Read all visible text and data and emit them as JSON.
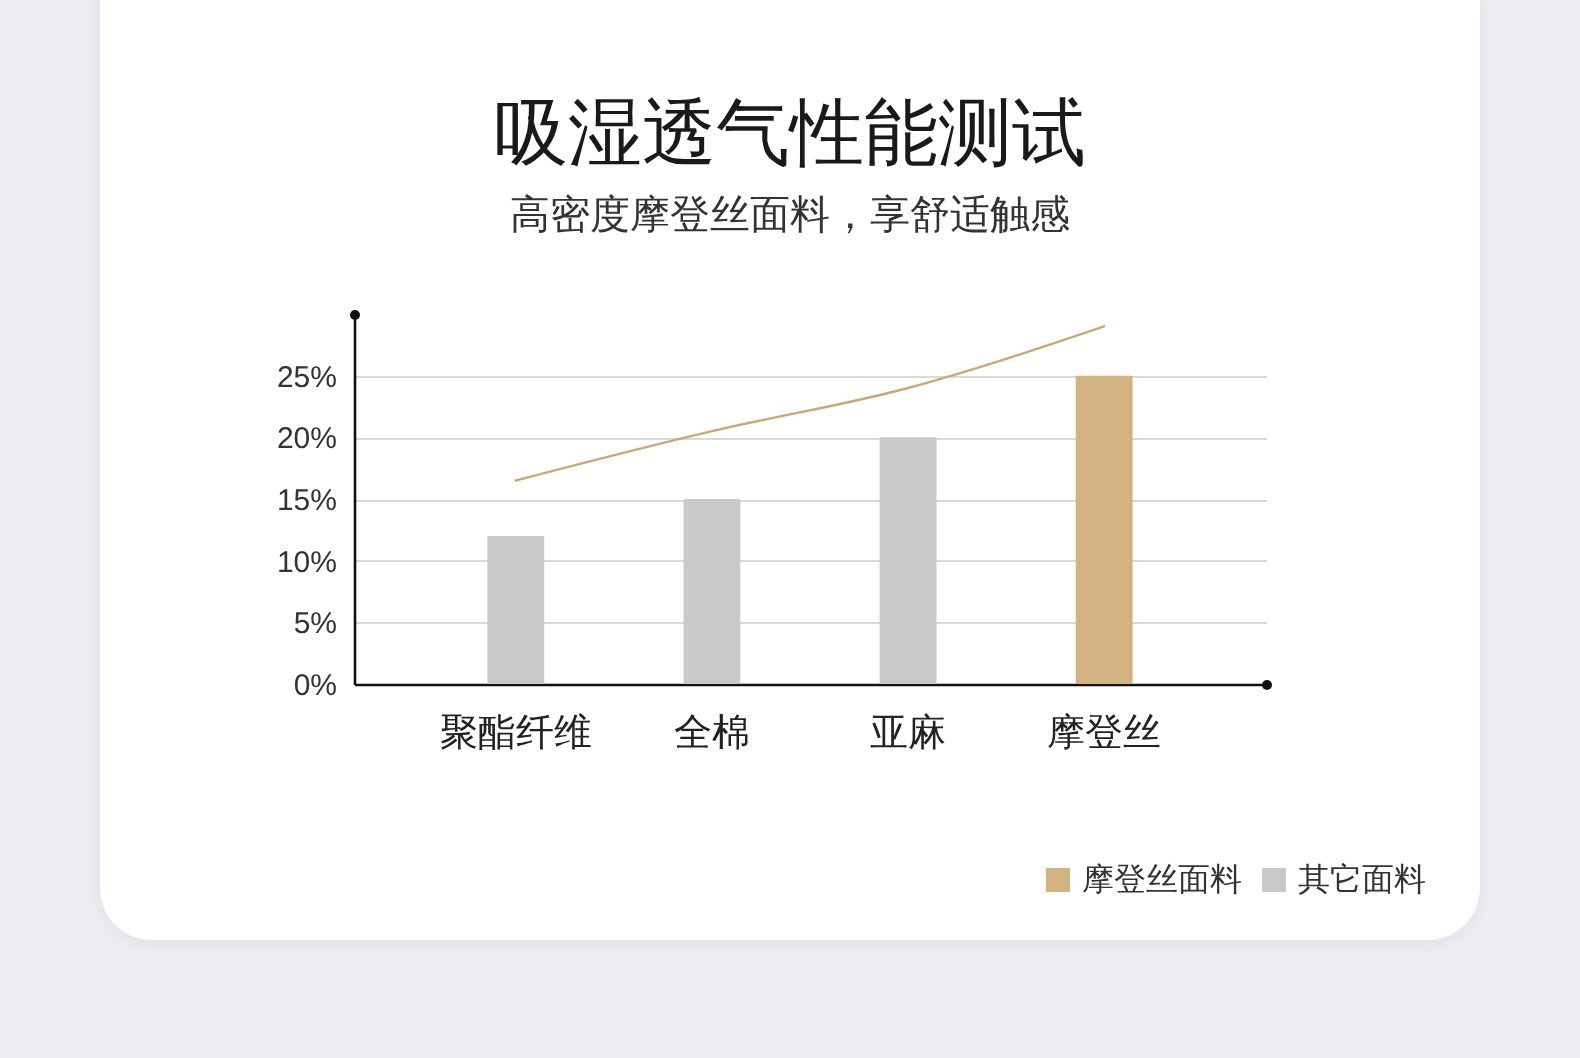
{
  "chart_data": {
    "type": "bar",
    "title": "吸湿透气性能测试",
    "subtitle": "高密度摩登丝面料，享舒适触感",
    "categories": [
      "聚酯纤维",
      "全棉",
      "亚麻",
      "摩登丝"
    ],
    "stacked": true,
    "series": [
      {
        "name": "摩登丝面料",
        "color": "#d2b281",
        "values": [
          null,
          null,
          null,
          25
        ]
      },
      {
        "name": "其它面料",
        "color": "#c9c9c9",
        "values": [
          12,
          15,
          20,
          null
        ]
      },
      {
        "type": "line",
        "color": "#c9a87a",
        "values": [
          16.5,
          20.5,
          24,
          29
        ]
      }
    ],
    "ylim": [
      0,
      30
    ],
    "yticks": [
      {
        "value": 0,
        "label": "0%"
      },
      {
        "value": 5,
        "label": "5%"
      },
      {
        "value": 10,
        "label": "10%"
      },
      {
        "value": 15,
        "label": "15%"
      },
      {
        "value": 20,
        "label": "20%"
      },
      {
        "value": 25,
        "label": "25%"
      }
    ],
    "grid": "y",
    "legend": "bottom right"
  }
}
